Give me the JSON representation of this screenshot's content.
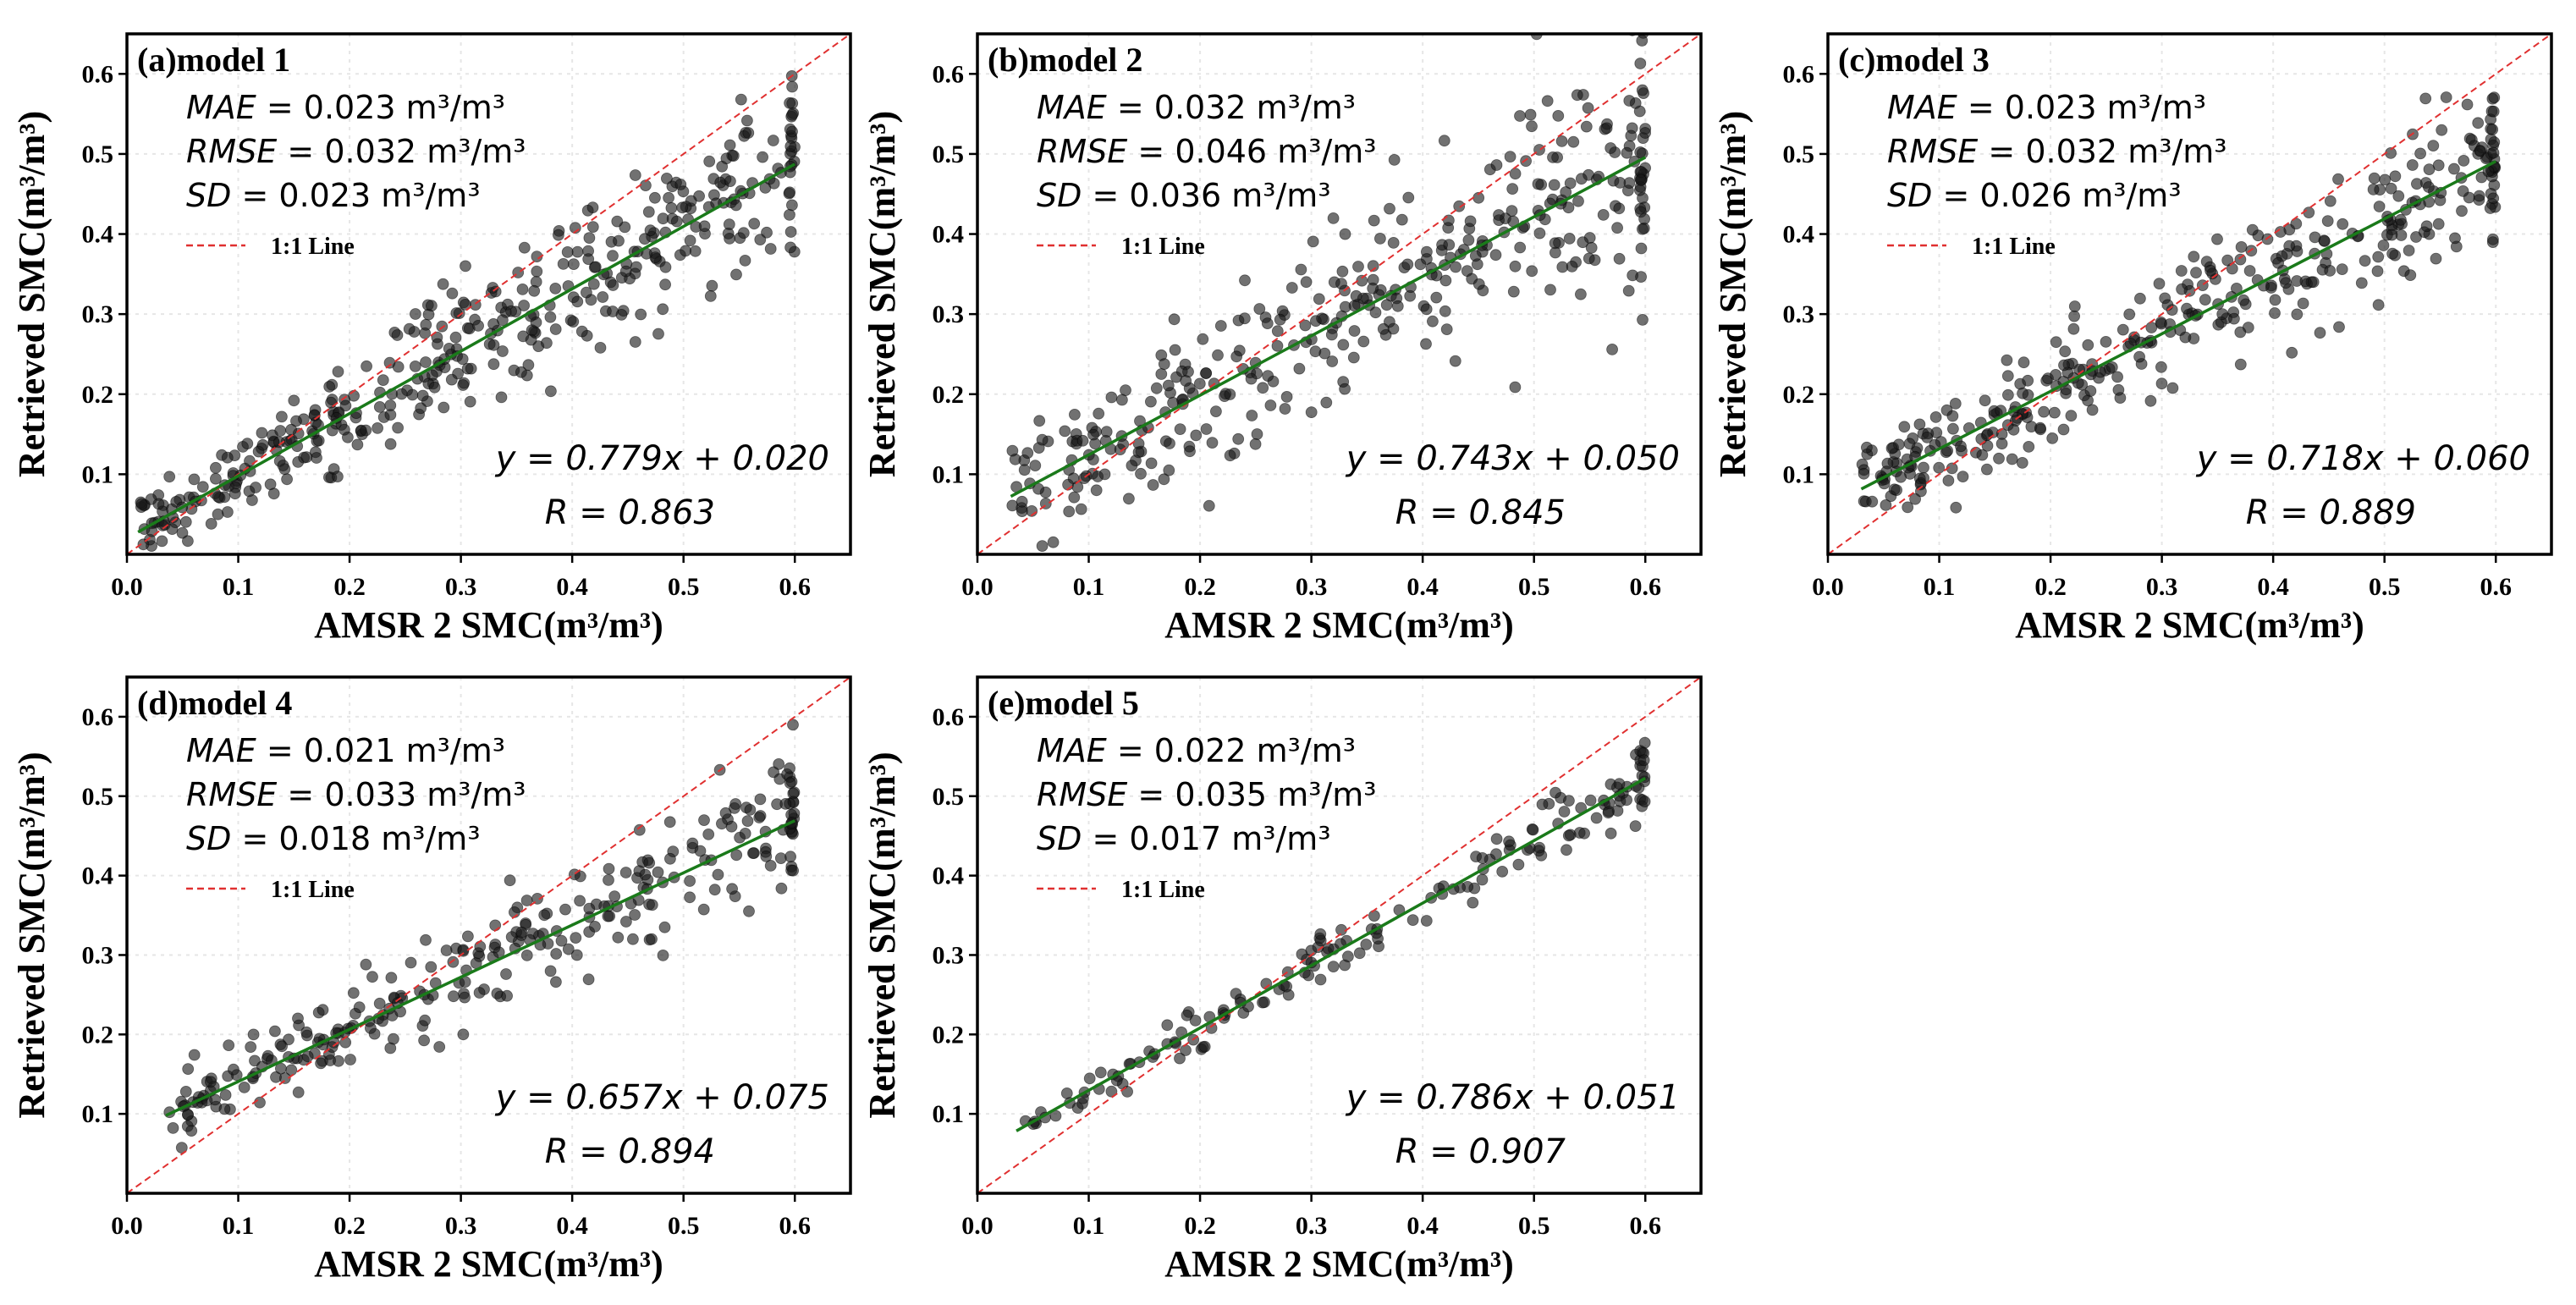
{
  "chart_data": [
    {
      "type": "scatter",
      "panel_label": "(a)model 1",
      "xlabel": "AMSR 2 SMC(m³/m³)",
      "ylabel": "Retrieved SMC(m³/m³)",
      "xlim": [
        0.0,
        0.65
      ],
      "ylim": [
        0.0,
        0.65
      ],
      "xticks": [
        "0.0",
        "0.1",
        "0.2",
        "0.3",
        "0.4",
        "0.5",
        "0.6"
      ],
      "yticks": [
        "0.1",
        "0.2",
        "0.3",
        "0.4",
        "0.5",
        "0.6"
      ],
      "grid": true,
      "stats": [
        {
          "name": "MAE",
          "value": "= 0.023 m³/m³"
        },
        {
          "name": "RMSE",
          "value": "= 0.032 m³/m³"
        },
        {
          "name": "SD",
          "value": "= 0.023 m³/m³"
        }
      ],
      "legend": "1:1 Line",
      "fit": {
        "slope": 0.779,
        "intercept": 0.02,
        "equation": "y = 0.779x + 0.020",
        "r_text": "R = 0.863"
      },
      "x_range": [
        0.01,
        0.6
      ],
      "spread": 0.045,
      "point_estimate_count": 420
    },
    {
      "type": "scatter",
      "panel_label": "(b)model 2",
      "xlabel": "AMSR 2 SMC(m³/m³)",
      "ylabel": "Retrieved SMC(m³/m³)",
      "xlim": [
        0.0,
        0.65
      ],
      "ylim": [
        0.0,
        0.65
      ],
      "xticks": [
        "0.0",
        "0.1",
        "0.2",
        "0.3",
        "0.4",
        "0.5",
        "0.6"
      ],
      "yticks": [
        "0.1",
        "0.2",
        "0.3",
        "0.4",
        "0.5",
        "0.6"
      ],
      "grid": true,
      "stats": [
        {
          "name": "MAE",
          "value": "= 0.032 m³/m³"
        },
        {
          "name": "RMSE",
          "value": "= 0.046 m³/m³"
        },
        {
          "name": "SD",
          "value": "= 0.036 m³/m³"
        }
      ],
      "legend": "1:1 Line",
      "fit": {
        "slope": 0.743,
        "intercept": 0.05,
        "equation": "y = 0.743x + 0.050",
        "r_text": "R = 0.845"
      },
      "x_range": [
        0.03,
        0.6
      ],
      "spread": 0.065,
      "point_estimate_count": 380
    },
    {
      "type": "scatter",
      "panel_label": "(c)model 3",
      "xlabel": "AMSR 2 SMC(m³/m³)",
      "ylabel": "Retrieved SMC(m³/m³)",
      "xlim": [
        0.0,
        0.65
      ],
      "ylim": [
        0.0,
        0.65
      ],
      "xticks": [
        "0.0",
        "0.1",
        "0.2",
        "0.3",
        "0.4",
        "0.5",
        "0.6"
      ],
      "yticks": [
        "0.1",
        "0.2",
        "0.3",
        "0.4",
        "0.5",
        "0.6"
      ],
      "grid": true,
      "stats": [
        {
          "name": "MAE",
          "value": "= 0.023 m³/m³"
        },
        {
          "name": "RMSE",
          "value": "= 0.032 m³/m³"
        },
        {
          "name": "SD",
          "value": "= 0.026 m³/m³"
        }
      ],
      "legend": "1:1 Line",
      "fit": {
        "slope": 0.718,
        "intercept": 0.06,
        "equation": "y = 0.718x + 0.060",
        "r_text": "R = 0.889"
      },
      "x_range": [
        0.03,
        0.6
      ],
      "spread": 0.045,
      "point_estimate_count": 380
    },
    {
      "type": "scatter",
      "panel_label": "(d)model 4",
      "xlabel": "AMSR 2 SMC(m³/m³)",
      "ylabel": "Retrieved SMC(m³/m³)",
      "xlim": [
        0.0,
        0.65
      ],
      "ylim": [
        0.0,
        0.65
      ],
      "xticks": [
        "0.0",
        "0.1",
        "0.2",
        "0.3",
        "0.4",
        "0.5",
        "0.6"
      ],
      "yticks": [
        "0.1",
        "0.2",
        "0.3",
        "0.4",
        "0.5",
        "0.6"
      ],
      "grid": true,
      "stats": [
        {
          "name": "MAE",
          "value": "= 0.021 m³/m³"
        },
        {
          "name": "RMSE",
          "value": "= 0.033 m³/m³"
        },
        {
          "name": "SD",
          "value": "= 0.018 m³/m³"
        }
      ],
      "legend": "1:1 Line",
      "fit": {
        "slope": 0.657,
        "intercept": 0.075,
        "equation": "y = 0.657x + 0.075",
        "r_text": "R = 0.894"
      },
      "x_range": [
        0.035,
        0.6
      ],
      "spread": 0.035,
      "point_estimate_count": 300
    },
    {
      "type": "scatter",
      "panel_label": "(e)model 5",
      "xlabel": "AMSR 2 SMC(m³/m³)",
      "ylabel": "Retrieved SMC(m³/m³)",
      "xlim": [
        0.0,
        0.65
      ],
      "ylim": [
        0.0,
        0.65
      ],
      "xticks": [
        "0.0",
        "0.1",
        "0.2",
        "0.3",
        "0.4",
        "0.5",
        "0.6"
      ],
      "yticks": [
        "0.1",
        "0.2",
        "0.3",
        "0.4",
        "0.5",
        "0.6"
      ],
      "grid": true,
      "stats": [
        {
          "name": "MAE",
          "value": "= 0.022 m³/m³"
        },
        {
          "name": "RMSE",
          "value": "= 0.035 m³/m³"
        },
        {
          "name": "SD",
          "value": "= 0.017 m³/m³"
        }
      ],
      "legend": "1:1 Line",
      "fit": {
        "slope": 0.786,
        "intercept": 0.051,
        "equation": "y = 0.786x + 0.051",
        "r_text": "R = 0.907"
      },
      "x_range": [
        0.035,
        0.6
      ],
      "spread": 0.018,
      "point_estimate_count": 170
    }
  ],
  "colors": {
    "points": "#1a1a1a",
    "fit_line": "#1a7a1a",
    "one_to_one": "#e03030",
    "grid": "#e6e6e6",
    "frame": "#000000"
  }
}
